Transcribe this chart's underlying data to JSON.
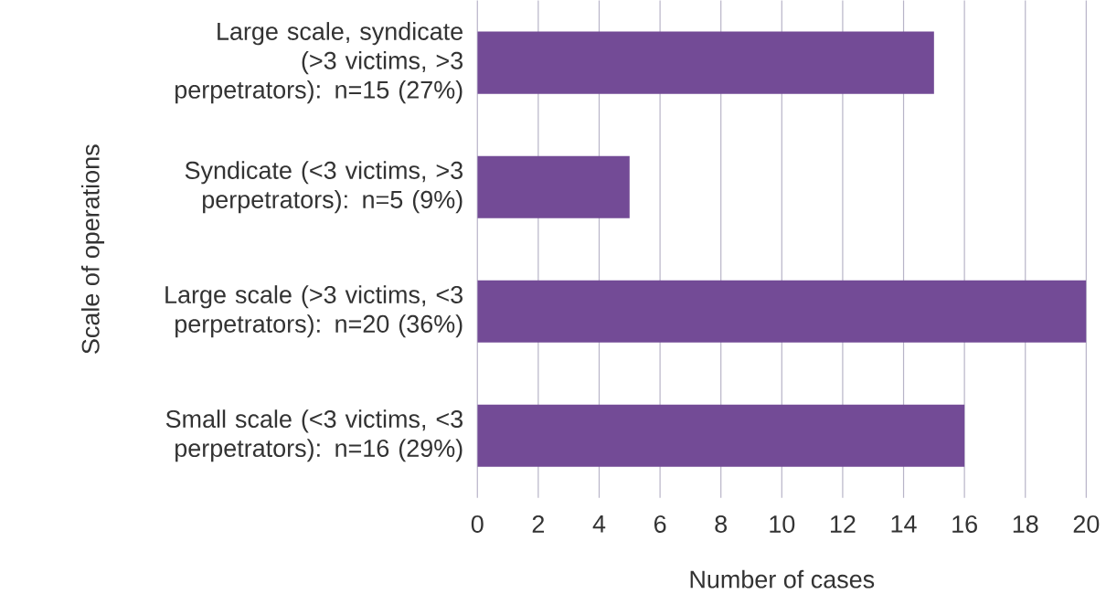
{
  "chart_data": {
    "type": "bar",
    "orientation": "horizontal",
    "xlabel": "Number of cases",
    "ylabel": "Scale of operations",
    "categories": [
      "Large scale, syndicate (>3 victims, >3 perpetrators): n=15 (27%)",
      "Syndicate (<3 victims, >3 perpetrators): n=5 (9%)",
      "Large scale (>3 victims, <3 perpetrators): n=20 (36%)",
      "Small scale (<3 victims, <3 perpetrators): n=16 (29%)"
    ],
    "values": [
      15,
      5,
      20,
      16
    ],
    "color": "#734b96",
    "xlim": [
      0,
      20
    ],
    "xticks": [
      0,
      2,
      4,
      6,
      8,
      10,
      12,
      14,
      16,
      18,
      20
    ],
    "grid": "x"
  }
}
